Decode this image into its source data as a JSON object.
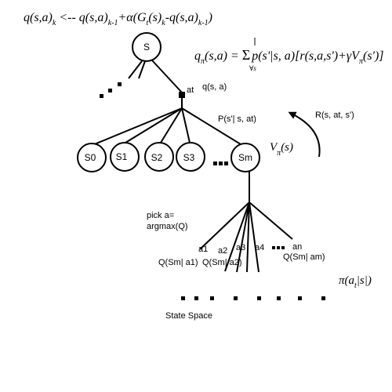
{
  "equations": {
    "update": {
      "q1": "q(s,a)",
      "sub1": "k",
      "arrow": " <-- q(s,a)",
      "sub2": "k-1",
      "plus": "+α(G",
      "sub3": "t",
      "mid": "(s)",
      "sub4": "k",
      "minus": "-q(s,a)",
      "sub5": "k-1",
      "close": ")"
    },
    "bellman": {
      "q": "q",
      "pi1": "π",
      "lhs": "(s,a) = ",
      "sum": "Σ",
      "sum_sub": "∀s",
      "body": "p(s'|s, a)[r(s,a,s')+γV",
      "pi2": "π",
      "end": "(s')]"
    },
    "v_pi": {
      "v": "V",
      "pi": "π",
      "arg": "(s)"
    },
    "policy": {
      "pi": "π(a",
      "sub": "t",
      "rest": "|s|)"
    }
  },
  "nodes": {
    "root": "S",
    "states": [
      "S0",
      "S1",
      "S2",
      "S3",
      "Sm"
    ],
    "state_ellipsis": "▪ ▪ ▪"
  },
  "labels": {
    "action": "at",
    "q_sa": "q(s, a)",
    "transition": "P(s'| s, at)",
    "reward": "R(s, at, s')",
    "pick_line1": "pick a=",
    "pick_line2": "argmax(Q)",
    "actions": [
      "a1",
      "a2",
      "a3",
      "a4",
      "an"
    ],
    "action_ellipsis": "▪ ▪ ▪",
    "q_values": [
      "Q(Sm| a1)",
      "Q(Sm| a2)",
      "Q(Sm| am)"
    ],
    "state_space": "State Space"
  }
}
